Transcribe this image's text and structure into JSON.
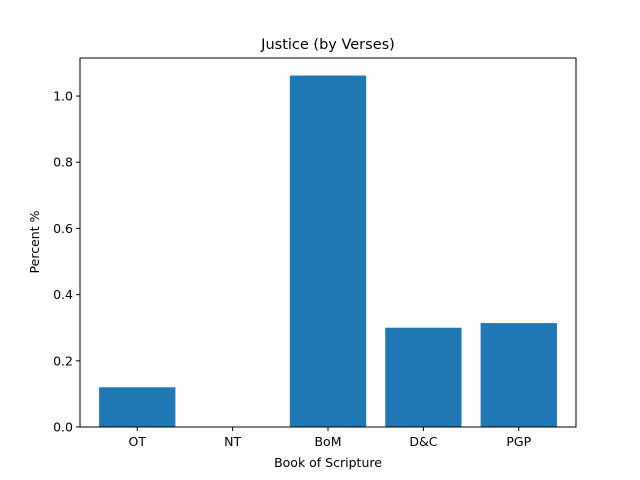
{
  "chart_data": {
    "type": "bar",
    "title": "Justice (by Verses)",
    "xlabel": "Book of Scripture",
    "ylabel": "Percent %",
    "categories": [
      "OT",
      "NT",
      "BoM",
      "D&C",
      "PGP"
    ],
    "values": [
      0.12,
      0.0,
      1.062,
      0.3,
      0.314
    ],
    "ylim": [
      0,
      1.115
    ],
    "yticks": [
      0.0,
      0.2,
      0.4,
      0.6,
      0.8,
      1.0
    ],
    "ytick_labels": [
      "0.0",
      "0.2",
      "0.4",
      "0.6",
      "0.8",
      "1.0"
    ],
    "bar_color": "#1f77b4",
    "grid": false,
    "legend": "none"
  }
}
